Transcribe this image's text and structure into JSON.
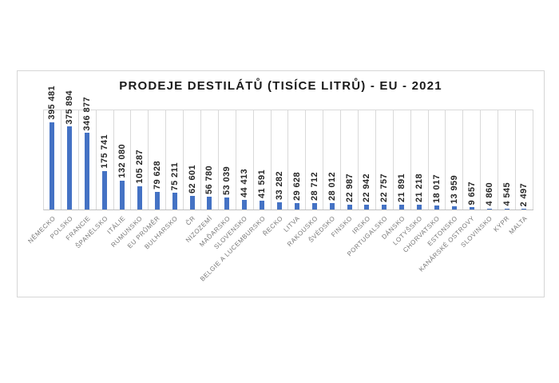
{
  "chart_data": {
    "type": "bar",
    "title": "PRODEJE DESTILÁTŮ (TISÍCE LITRŮ) - EU - 2021",
    "xlabel": "",
    "ylabel": "",
    "ylim": [
      0,
      450000
    ],
    "grid": "vertical category separators only, no horizontal gridlines, no y-axis ticks",
    "legend_position": "none",
    "bar_color": "#4472C4",
    "gridline_color": "#D9D9D9",
    "axis_line_color": "#BFBFBF",
    "frame_border_color": "#D6D6D6",
    "value_label_rotation": -90,
    "category_label_rotation": -45,
    "categories": [
      "NĚMECKO",
      "POLSKO",
      "FRANCIE",
      "ŠPANĚLSKO",
      "ITÁLIE",
      "RUMUNSKO",
      "EU PRŮMĚR",
      "BULHARSKO",
      "ČR",
      "NIZOZEMÍ",
      "MAĎARSKO",
      "SLOVENSKO",
      "BELGIE A LUCEMBURSKO",
      "ŘECKO",
      "LITVA",
      "RAKOUSKO",
      "ŠVÉDSKO",
      "FINSKO",
      "IRSKO",
      "PORTUGALSKO",
      "DÁNSKO",
      "LOTYŠSKO",
      "CHORVATSKO",
      "ESTONSKO",
      "KANÁRSKÉ OSTROVY",
      "SLOVINSKO",
      "KYPR",
      "MALTA"
    ],
    "values": [
      395481,
      375894,
      346877,
      175741,
      132080,
      105287,
      79628,
      75211,
      62601,
      56780,
      53039,
      44413,
      41591,
      33282,
      29628,
      28712,
      28012,
      22987,
      22942,
      22757,
      21891,
      21218,
      18017,
      13959,
      9657,
      4860,
      4545,
      2497
    ],
    "value_labels": [
      "395 481",
      "375 894",
      "346 877",
      "175 741",
      "132 080",
      "105 287",
      "79 628",
      "75 211",
      "62 601",
      "56 780",
      "53 039",
      "44 413",
      "41 591",
      "33 282",
      "29 628",
      "28 712",
      "28 012",
      "22 987",
      "22 942",
      "22 757",
      "21 891",
      "21 218",
      "18 017",
      "13 959",
      "9 657",
      "4 860",
      "4 545",
      "2 497"
    ]
  }
}
